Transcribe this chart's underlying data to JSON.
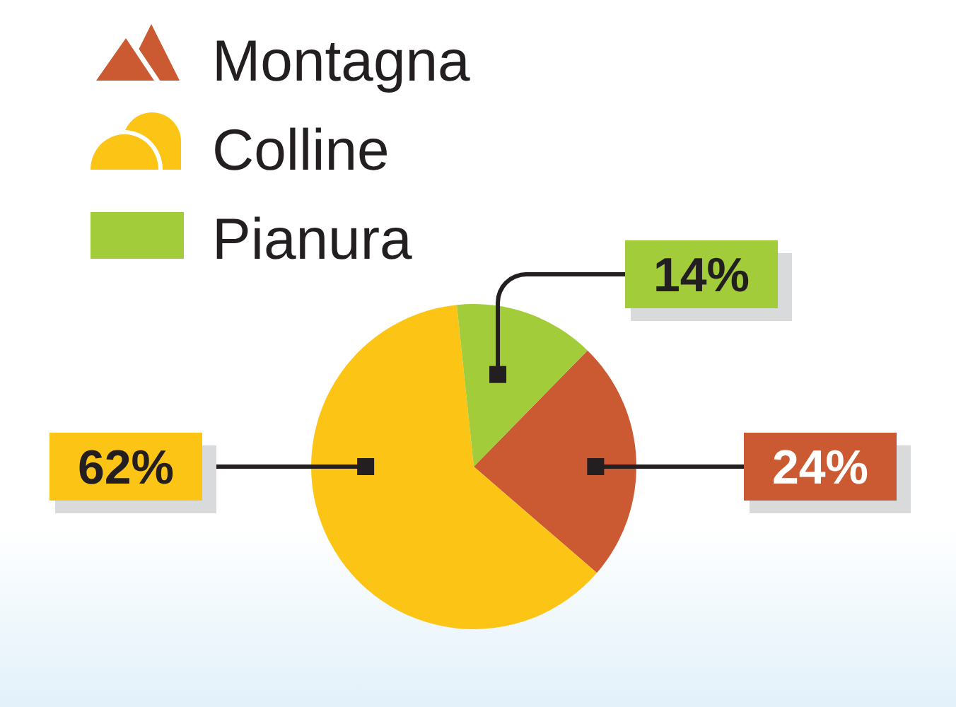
{
  "chart_data": {
    "type": "pie",
    "categories": [
      "Montagna",
      "Colline",
      "Pianura"
    ],
    "values": [
      24,
      62,
      14
    ],
    "colors": [
      "#cb5a33",
      "#fcc516",
      "#a3cc3a"
    ],
    "value_labels": [
      "24%",
      "62%",
      "14%"
    ],
    "legend": "top left"
  }
}
